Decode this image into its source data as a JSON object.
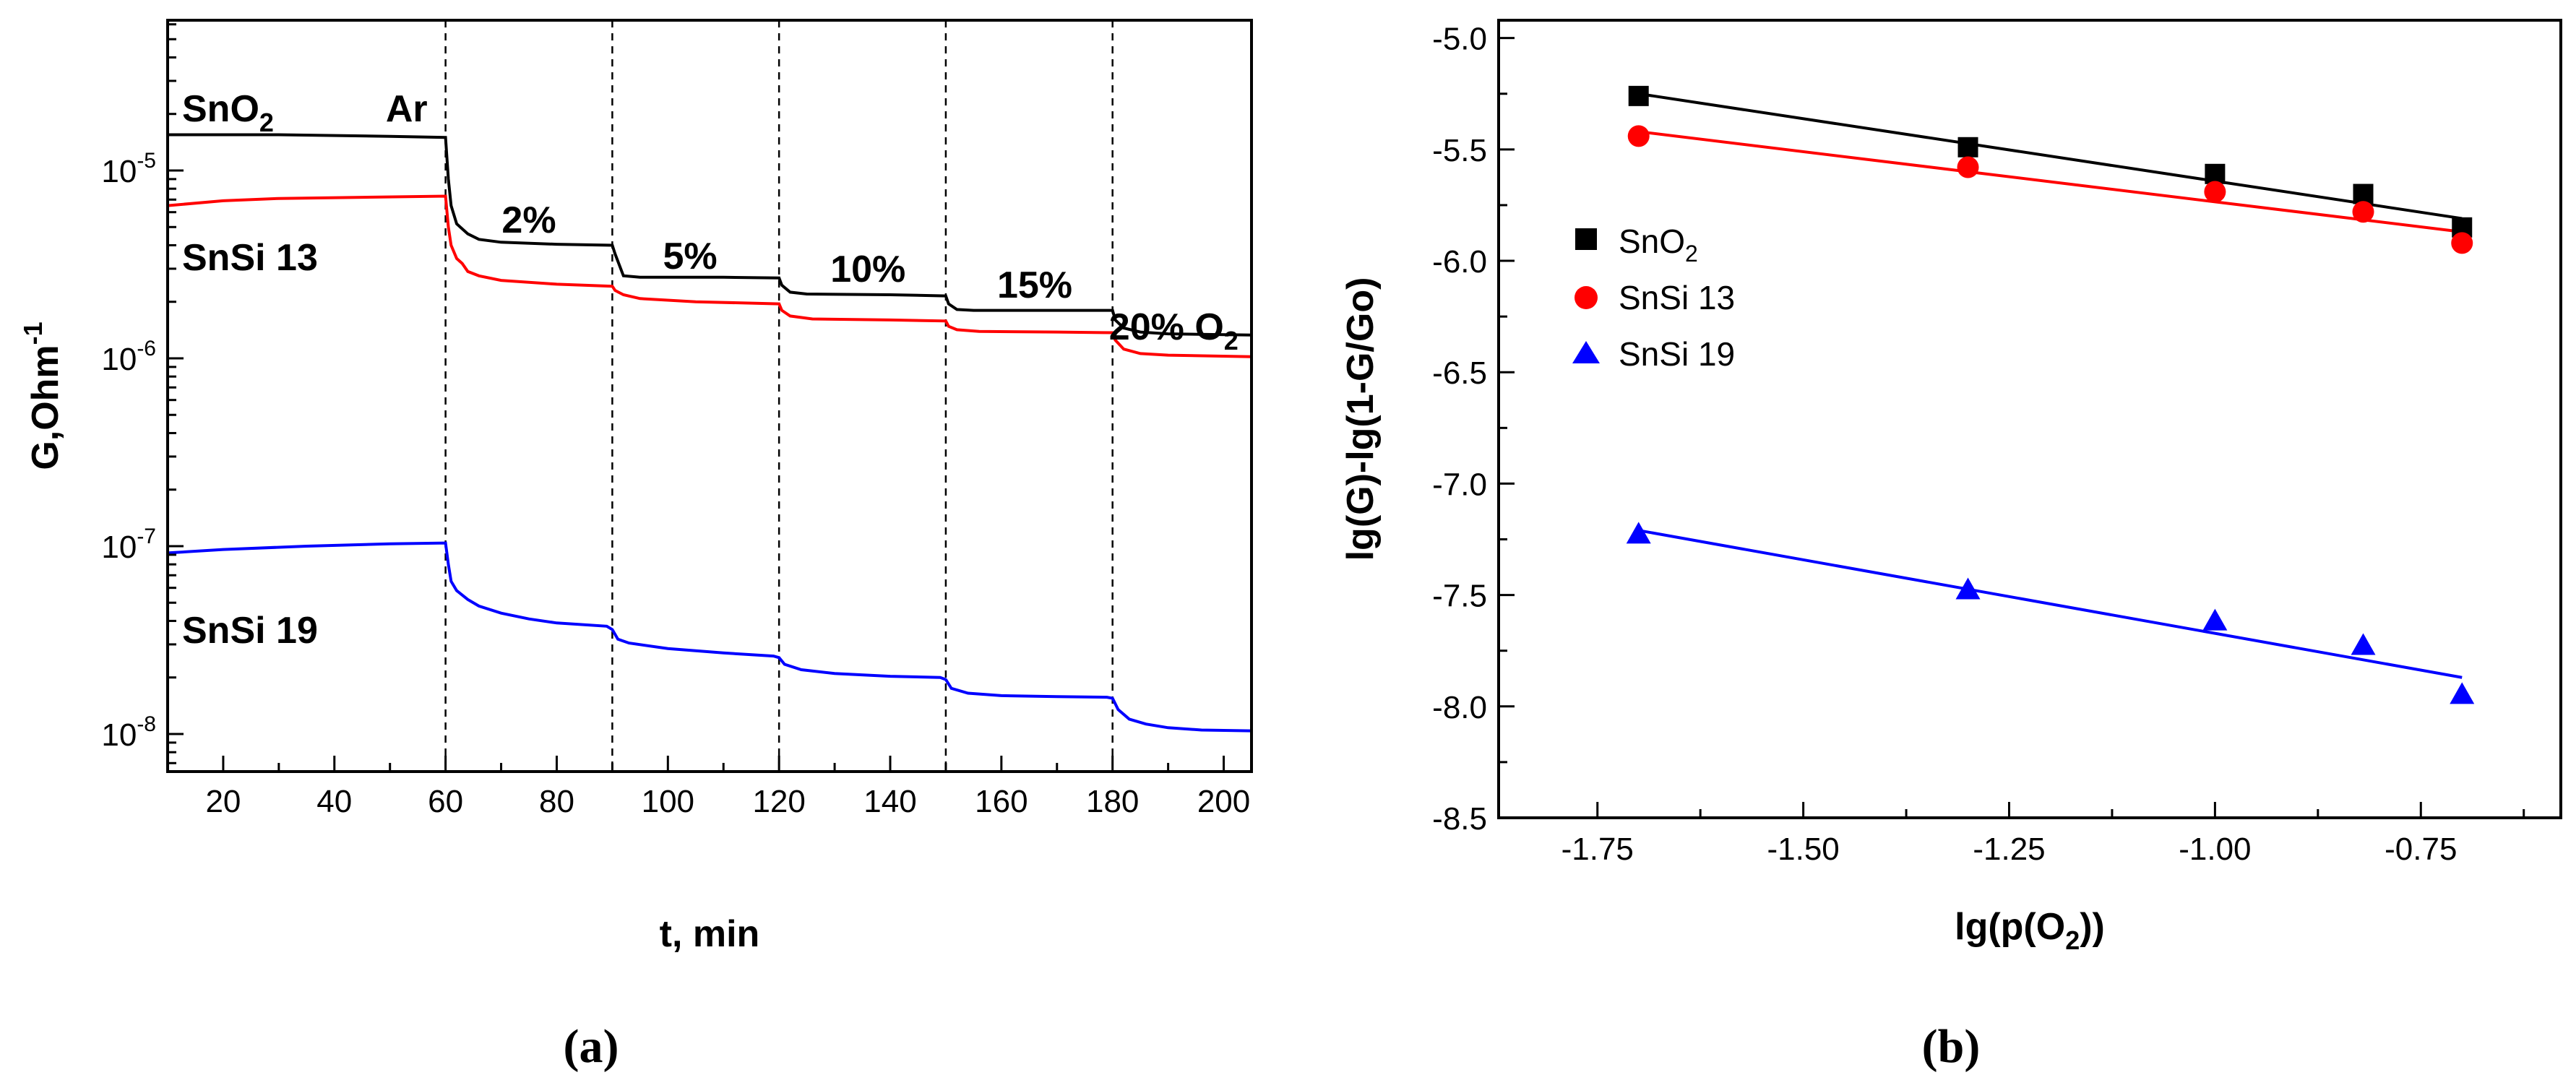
{
  "chart_data": [
    {
      "type": "line",
      "panel_label": "(a)",
      "xlabel": "t, min",
      "ylabel": "G,Ohm",
      "ylabel_sup": "-1",
      "yscale": "log",
      "xlim": [
        10,
        205
      ],
      "ylim_log10": [
        -8.2,
        -4.2
      ],
      "xticks": [
        20,
        40,
        60,
        80,
        100,
        120,
        140,
        160,
        180,
        200
      ],
      "yticks": [
        {
          "base": "10",
          "exp": "-5",
          "log10": -5
        },
        {
          "base": "10",
          "exp": "-6",
          "log10": -6
        },
        {
          "base": "10",
          "exp": "-7",
          "log10": -7
        },
        {
          "base": "10",
          "exp": "-8",
          "log10": -8
        }
      ],
      "gas_switch_times": [
        60,
        90,
        120,
        150,
        180
      ],
      "atmosphere_labels": [
        {
          "text": "Ar",
          "x": 53
        },
        {
          "text": "2%",
          "x": 75
        },
        {
          "text": "5%",
          "x": 104
        },
        {
          "text": "10%",
          "x": 136
        },
        {
          "text": "15%",
          "x": 166
        },
        {
          "text": "20% O",
          "sub": "2",
          "x": 191
        }
      ],
      "series": [
        {
          "name": "SnO",
          "name_sub": "2",
          "color": "#000000",
          "points": [
            [
              10,
              1.55e-05
            ],
            [
              30,
              1.55e-05
            ],
            [
              50,
              1.52e-05
            ],
            [
              60,
              1.5e-05
            ],
            [
              60.5,
              9e-06
            ],
            [
              61,
              6.5e-06
            ],
            [
              62,
              5.2e-06
            ],
            [
              64,
              4.6e-06
            ],
            [
              66,
              4.3e-06
            ],
            [
              70,
              4.15e-06
            ],
            [
              80,
              4.05e-06
            ],
            [
              90,
              4e-06
            ],
            [
              90.5,
              3.6e-06
            ],
            [
              92,
              2.75e-06
            ],
            [
              95,
              2.7e-06
            ],
            [
              110,
              2.7e-06
            ],
            [
              120,
              2.68e-06
            ],
            [
              120.5,
              2.45e-06
            ],
            [
              122,
              2.25e-06
            ],
            [
              125,
              2.2e-06
            ],
            [
              140,
              2.18e-06
            ],
            [
              150,
              2.15e-06
            ],
            [
              150.5,
              1.95e-06
            ],
            [
              152,
              1.82e-06
            ],
            [
              155,
              1.8e-06
            ],
            [
              170,
              1.8e-06
            ],
            [
              180,
              1.8e-06
            ],
            [
              180.5,
              1.6e-06
            ],
            [
              182,
              1.45e-06
            ],
            [
              185,
              1.38e-06
            ],
            [
              190,
              1.35e-06
            ],
            [
              205,
              1.33e-06
            ]
          ]
        },
        {
          "name": "SnSi 13",
          "color": "#ff0000",
          "points": [
            [
              10,
              6.5e-06
            ],
            [
              20,
              6.9e-06
            ],
            [
              30,
              7.1e-06
            ],
            [
              45,
              7.2e-06
            ],
            [
              60,
              7.3e-06
            ],
            [
              60.5,
              5e-06
            ],
            [
              61,
              4e-06
            ],
            [
              62,
              3.4e-06
            ],
            [
              63,
              3.2e-06
            ],
            [
              64,
              2.9e-06
            ],
            [
              66,
              2.75e-06
            ],
            [
              70,
              2.6e-06
            ],
            [
              80,
              2.48e-06
            ],
            [
              90,
              2.42e-06
            ],
            [
              90.5,
              2.3e-06
            ],
            [
              92,
              2.18e-06
            ],
            [
              95,
              2.08e-06
            ],
            [
              105,
              2e-06
            ],
            [
              120,
              1.95e-06
            ],
            [
              120.5,
              1.8e-06
            ],
            [
              122,
              1.68e-06
            ],
            [
              126,
              1.62e-06
            ],
            [
              140,
              1.6e-06
            ],
            [
              150,
              1.58e-06
            ],
            [
              150.5,
              1.48e-06
            ],
            [
              152,
              1.42e-06
            ],
            [
              156,
              1.39e-06
            ],
            [
              170,
              1.38e-06
            ],
            [
              180,
              1.37e-06
            ],
            [
              180.5,
              1.25e-06
            ],
            [
              182,
              1.12e-06
            ],
            [
              185,
              1.06e-06
            ],
            [
              190,
              1.04e-06
            ],
            [
              205,
              1.02e-06
            ]
          ]
        },
        {
          "name": "SnSi 19",
          "color": "#0000ff",
          "points": [
            [
              10,
              9.2e-08
            ],
            [
              20,
              9.6e-08
            ],
            [
              35,
              1e-07
            ],
            [
              50,
              1.03e-07
            ],
            [
              60,
              1.04e-07
            ],
            [
              60.5,
              8e-08
            ],
            [
              61,
              6.5e-08
            ],
            [
              62,
              5.8e-08
            ],
            [
              64,
              5.2e-08
            ],
            [
              66,
              4.8e-08
            ],
            [
              70,
              4.4e-08
            ],
            [
              75,
              4.1e-08
            ],
            [
              80,
              3.9e-08
            ],
            [
              89,
              3.75e-08
            ],
            [
              90,
              3.6e-08
            ],
            [
              91,
              3.2e-08
            ],
            [
              93,
              3.05e-08
            ],
            [
              100,
              2.85e-08
            ],
            [
              110,
              2.7e-08
            ],
            [
              119,
              2.6e-08
            ],
            [
              120,
              2.55e-08
            ],
            [
              121,
              2.35e-08
            ],
            [
              124,
              2.2e-08
            ],
            [
              130,
              2.1e-08
            ],
            [
              140,
              2.03e-08
            ],
            [
              149,
              2e-08
            ],
            [
              150,
              1.95e-08
            ],
            [
              151,
              1.75e-08
            ],
            [
              154,
              1.65e-08
            ],
            [
              160,
              1.6e-08
            ],
            [
              170,
              1.58e-08
            ],
            [
              179,
              1.57e-08
            ],
            [
              180,
              1.55e-08
            ],
            [
              181,
              1.35e-08
            ],
            [
              183,
              1.2e-08
            ],
            [
              186,
              1.13e-08
            ],
            [
              190,
              1.08e-08
            ],
            [
              196,
              1.05e-08
            ],
            [
              205,
              1.04e-08
            ]
          ]
        }
      ]
    },
    {
      "type": "scatter",
      "panel_label": "(b)",
      "xlabel": "lg(p(O",
      "xlabel_sub": "2",
      "xlabel_end": "))",
      "ylabel": "lg(G)-lg(1-G/Go)",
      "xlim": [
        -1.87,
        -0.58
      ],
      "ylim": [
        -8.5,
        -4.92
      ],
      "xticks": [
        -1.75,
        -1.5,
        -1.25,
        -1.0,
        -0.75
      ],
      "xticklabels": [
        "-1.75",
        "-1.50",
        "-1.25",
        "-1.00",
        "-0.75"
      ],
      "yticks": [
        -8.5,
        -8.0,
        -7.5,
        -7.0,
        -6.5,
        -6.0,
        -5.5,
        -5.0
      ],
      "yticklabels": [
        "-8.5",
        "-8.0",
        "-7.5",
        "-7.0",
        "-6.5",
        "-6.0",
        "-5.5",
        "-5.0"
      ],
      "legend_position": "middle-left",
      "series": [
        {
          "name": "SnO",
          "name_sub": "2",
          "marker": "square",
          "color": "#000000",
          "x": [
            -1.7,
            -1.3,
            -1.0,
            -0.82,
            -0.7
          ],
          "y": [
            -5.26,
            -5.49,
            -5.61,
            -5.7,
            -5.85
          ],
          "fit": [
            [
              -1.7,
              -5.25
            ],
            [
              -0.7,
              -5.81
            ]
          ]
        },
        {
          "name": "SnSi 13",
          "marker": "circle",
          "color": "#ff0000",
          "x": [
            -1.7,
            -1.3,
            -1.0,
            -0.82,
            -0.7
          ],
          "y": [
            -5.44,
            -5.58,
            -5.69,
            -5.78,
            -5.92
          ],
          "fit": [
            [
              -1.7,
              -5.42
            ],
            [
              -0.7,
              -5.87
            ]
          ]
        },
        {
          "name": "SnSi 19",
          "marker": "triangle",
          "color": "#0000ff",
          "x": [
            -1.7,
            -1.3,
            -1.0,
            -0.82,
            -0.7
          ],
          "y": [
            -7.23,
            -7.48,
            -7.62,
            -7.73,
            -7.95
          ],
          "fit": [
            [
              -1.7,
              -7.21
            ],
            [
              -0.7,
              -7.87
            ]
          ]
        }
      ]
    }
  ]
}
